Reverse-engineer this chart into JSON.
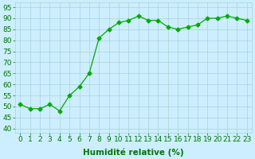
{
  "x": [
    0,
    1,
    2,
    3,
    4,
    5,
    6,
    7,
    8,
    9,
    10,
    11,
    12,
    13,
    14,
    15,
    16,
    17,
    18,
    19,
    20,
    21,
    22,
    23
  ],
  "y": [
    51,
    49,
    49,
    51,
    48,
    55,
    59,
    65,
    81,
    85,
    88,
    89,
    91,
    89,
    89,
    86,
    85,
    86,
    87,
    90,
    90,
    91,
    90,
    89
  ],
  "line_color": "#00aa00",
  "marker": "D",
  "marker_size": 2.5,
  "bg_color": "#cceeff",
  "grid_color": "#aad4d4",
  "xlabel": "Humidité relative (%)",
  "ylabel_ticks": [
    40,
    45,
    50,
    55,
    60,
    65,
    70,
    75,
    80,
    85,
    90,
    95
  ],
  "ylim": [
    38,
    97
  ],
  "xlim": [
    -0.5,
    23.5
  ],
  "xlabel_color": "#007700",
  "tick_color": "#007700",
  "label_fontsize": 7.5,
  "tick_fontsize": 6.5
}
